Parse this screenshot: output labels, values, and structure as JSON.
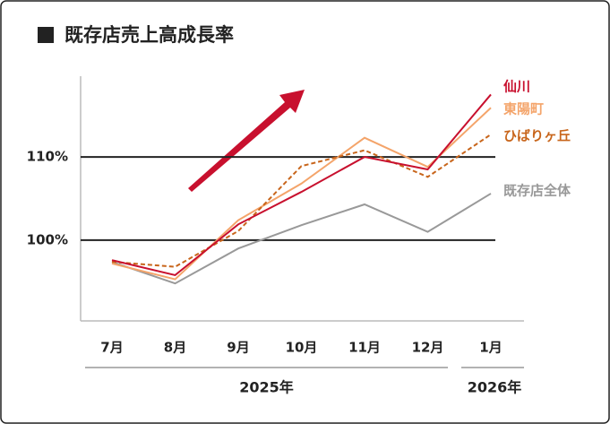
{
  "chart_data": {
    "type": "line",
    "title": "既存店売上高成長率",
    "categories": [
      "7月",
      "8月",
      "9月",
      "10月",
      "11月",
      "12月",
      "1月"
    ],
    "x_groups": [
      "2025年",
      "2026年"
    ],
    "series": [
      {
        "name": "仙川",
        "color": "#c8102e",
        "values": [
          97.6,
          95.8,
          101.9,
          105.8,
          110.0,
          108.5,
          117.5
        ]
      },
      {
        "name": "東陽町",
        "color": "#f4a46a",
        "values": [
          97.2,
          95.3,
          102.4,
          106.8,
          112.3,
          108.8,
          115.9
        ]
      },
      {
        "name": "ひばりヶ丘",
        "color": "#c8651b",
        "dashed": true,
        "values": [
          97.4,
          96.8,
          101.1,
          108.9,
          110.8,
          107.6,
          112.7
        ]
      },
      {
        "name": "既存店全体",
        "color": "#999999",
        "values": [
          97.4,
          94.8,
          99.0,
          101.8,
          104.3,
          101.0,
          105.6
        ]
      }
    ],
    "ylim": [
      90.3,
      119.7
    ],
    "yticks": [
      {
        "value": 100,
        "label": "100%"
      },
      {
        "value": 110,
        "label": "110%"
      }
    ],
    "grid": true
  }
}
